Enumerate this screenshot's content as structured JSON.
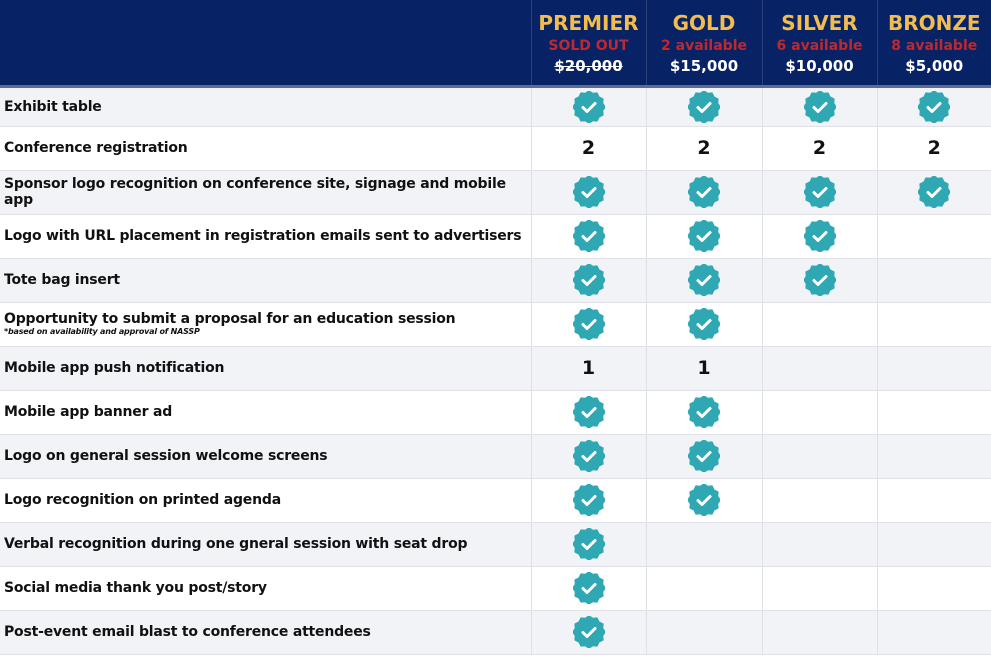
{
  "tiers": [
    {
      "name": "PREMIER",
      "availability": "SOLD OUT",
      "price": "$20,000",
      "sold_out": true
    },
    {
      "name": "GOLD",
      "availability": "2 available",
      "price": "$15,000"
    },
    {
      "name": "SILVER",
      "availability": "6 available",
      "price": "$10,000"
    },
    {
      "name": "BRONZE",
      "availability": "8 available",
      "price": "$5,000"
    }
  ],
  "colors": {
    "header_bg": "#082266",
    "tier": "#f2bd4e",
    "availability": "#c0282d",
    "check": "#2fa8b3"
  },
  "rows": [
    {
      "label": "Exhibit table",
      "cells": [
        "check",
        "check",
        "check",
        "check"
      ]
    },
    {
      "label": "Conference registration",
      "cells": [
        "2",
        "2",
        "2",
        "2"
      ]
    },
    {
      "label": "Sponsor logo recognition on conference site, signage and mobile app",
      "cells": [
        "check",
        "check",
        "check",
        "check"
      ]
    },
    {
      "label": "Logo with URL placement in registration emails sent to advertisers",
      "cells": [
        "check",
        "check",
        "check",
        ""
      ]
    },
    {
      "label": "Tote bag insert",
      "cells": [
        "check",
        "check",
        "check",
        ""
      ]
    },
    {
      "label": "Opportunity to submit a proposal for an education session",
      "note": "*based on availability and approval of NASSP",
      "cells": [
        "check",
        "check",
        "",
        ""
      ]
    },
    {
      "label": "Mobile app push notification",
      "cells": [
        "1",
        "1",
        "",
        ""
      ]
    },
    {
      "label": "Mobile app banner ad",
      "cells": [
        "check",
        "check",
        "",
        ""
      ]
    },
    {
      "label": "Logo on general session welcome screens",
      "cells": [
        "check",
        "check",
        "",
        ""
      ]
    },
    {
      "label": "Logo recognition on printed agenda",
      "cells": [
        "check",
        "check",
        "",
        ""
      ]
    },
    {
      "label": "Verbal recognition during one gneral session with seat drop",
      "cells": [
        "check",
        "",
        "",
        ""
      ]
    },
    {
      "label": "Social media thank you post/story",
      "cells": [
        "check",
        "",
        "",
        ""
      ]
    },
    {
      "label": "Post-event email blast to conference attendees",
      "cells": [
        "check",
        "",
        "",
        ""
      ]
    }
  ]
}
